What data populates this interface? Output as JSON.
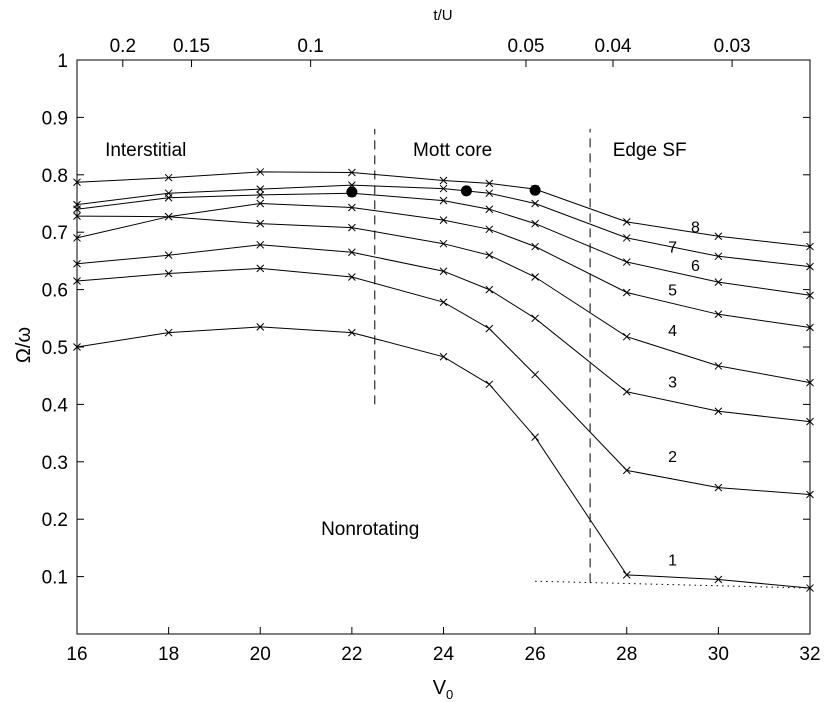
{
  "chart_data": {
    "type": "line",
    "title": "",
    "xlabel_main": "V",
    "xlabel_sub": "0",
    "ylabel": "Ω/ω",
    "top_axis_label": "t/U",
    "xlim": [
      16,
      32
    ],
    "ylim": [
      0,
      1
    ],
    "grid": false,
    "x_ticks": [
      16,
      18,
      20,
      22,
      24,
      26,
      28,
      30,
      32
    ],
    "y_ticks": [
      0.1,
      0.2,
      0.3,
      0.4,
      0.5,
      0.6,
      0.7,
      0.8,
      0.9,
      1
    ],
    "y_tick_labels": [
      "0.1",
      "0.2",
      "0.3",
      "0.4",
      "0.5",
      "0.6",
      "0.7",
      "0.8",
      "0.9",
      "1"
    ],
    "top_ticks": [
      {
        "label": "0.2",
        "v0": 17.0
      },
      {
        "label": "0.15",
        "v0": 18.5
      },
      {
        "label": "0.1",
        "v0": 21.1
      },
      {
        "label": "0.05",
        "v0": 25.8
      },
      {
        "label": "0.04",
        "v0": 27.7
      },
      {
        "label": "0.03",
        "v0": 30.3
      }
    ],
    "x": [
      16,
      18,
      20,
      22,
      24,
      25,
      26,
      28,
      30,
      32
    ],
    "series": [
      {
        "name": "1",
        "label_at": [
          29,
          0.13
        ],
        "values": [
          0.5,
          0.525,
          0.535,
          0.525,
          0.483,
          0.435,
          0.343,
          0.103,
          0.095,
          0.08
        ]
      },
      {
        "name": "2",
        "label_at": [
          29,
          0.31
        ],
        "values": [
          0.615,
          0.628,
          0.637,
          0.622,
          0.578,
          0.532,
          0.452,
          0.285,
          0.255,
          0.243
        ]
      },
      {
        "name": "3",
        "label_at": [
          29,
          0.44
        ],
        "values": [
          0.645,
          0.66,
          0.678,
          0.665,
          0.632,
          0.6,
          0.55,
          0.422,
          0.388,
          0.37
        ]
      },
      {
        "name": "4",
        "label_at": [
          29,
          0.53
        ],
        "values": [
          0.69,
          0.727,
          0.715,
          0.708,
          0.68,
          0.66,
          0.622,
          0.518,
          0.467,
          0.438
        ]
      },
      {
        "name": "5",
        "label_at": [
          29,
          0.6
        ],
        "values": [
          0.728,
          0.727,
          0.75,
          0.743,
          0.721,
          0.705,
          0.675,
          0.595,
          0.557,
          0.534
        ]
      },
      {
        "name": "6",
        "label_at": [
          29.5,
          0.643
        ],
        "values": [
          0.74,
          0.76,
          0.765,
          0.768,
          0.755,
          0.74,
          0.715,
          0.648,
          0.613,
          0.59
        ]
      },
      {
        "name": "7",
        "label_at": [
          29,
          0.675
        ],
        "values": [
          0.748,
          0.768,
          0.775,
          0.782,
          0.776,
          0.768,
          0.75,
          0.69,
          0.658,
          0.64
        ]
      },
      {
        "name": "8",
        "label_at": [
          29.5,
          0.71
        ],
        "values": [
          0.787,
          0.795,
          0.805,
          0.804,
          0.79,
          0.785,
          0.775,
          0.718,
          0.693,
          0.675
        ]
      }
    ],
    "highlight_points": [
      {
        "x": 22,
        "y": 0.77
      },
      {
        "x": 24.5,
        "y": 0.772
      },
      {
        "x": 26,
        "y": 0.773
      }
    ],
    "phase_boundaries": [
      {
        "x": 22.5,
        "y_from": 0.4,
        "y_to": 0.88
      },
      {
        "x": 27.2,
        "y_from": 0.09,
        "y_to": 0.88
      }
    ],
    "dotted_line": {
      "x_from": 26,
      "y_from": 0.092,
      "x_to": 32,
      "y_to": 0.08
    },
    "annotations": [
      {
        "text": "Interstitial",
        "x": 17.5,
        "y": 0.845
      },
      {
        "text": "Mott core",
        "x": 24.2,
        "y": 0.845
      },
      {
        "text": "Edge SF",
        "x": 28.5,
        "y": 0.845
      },
      {
        "text": "Nonrotating",
        "x": 22.4,
        "y": 0.185
      }
    ]
  }
}
